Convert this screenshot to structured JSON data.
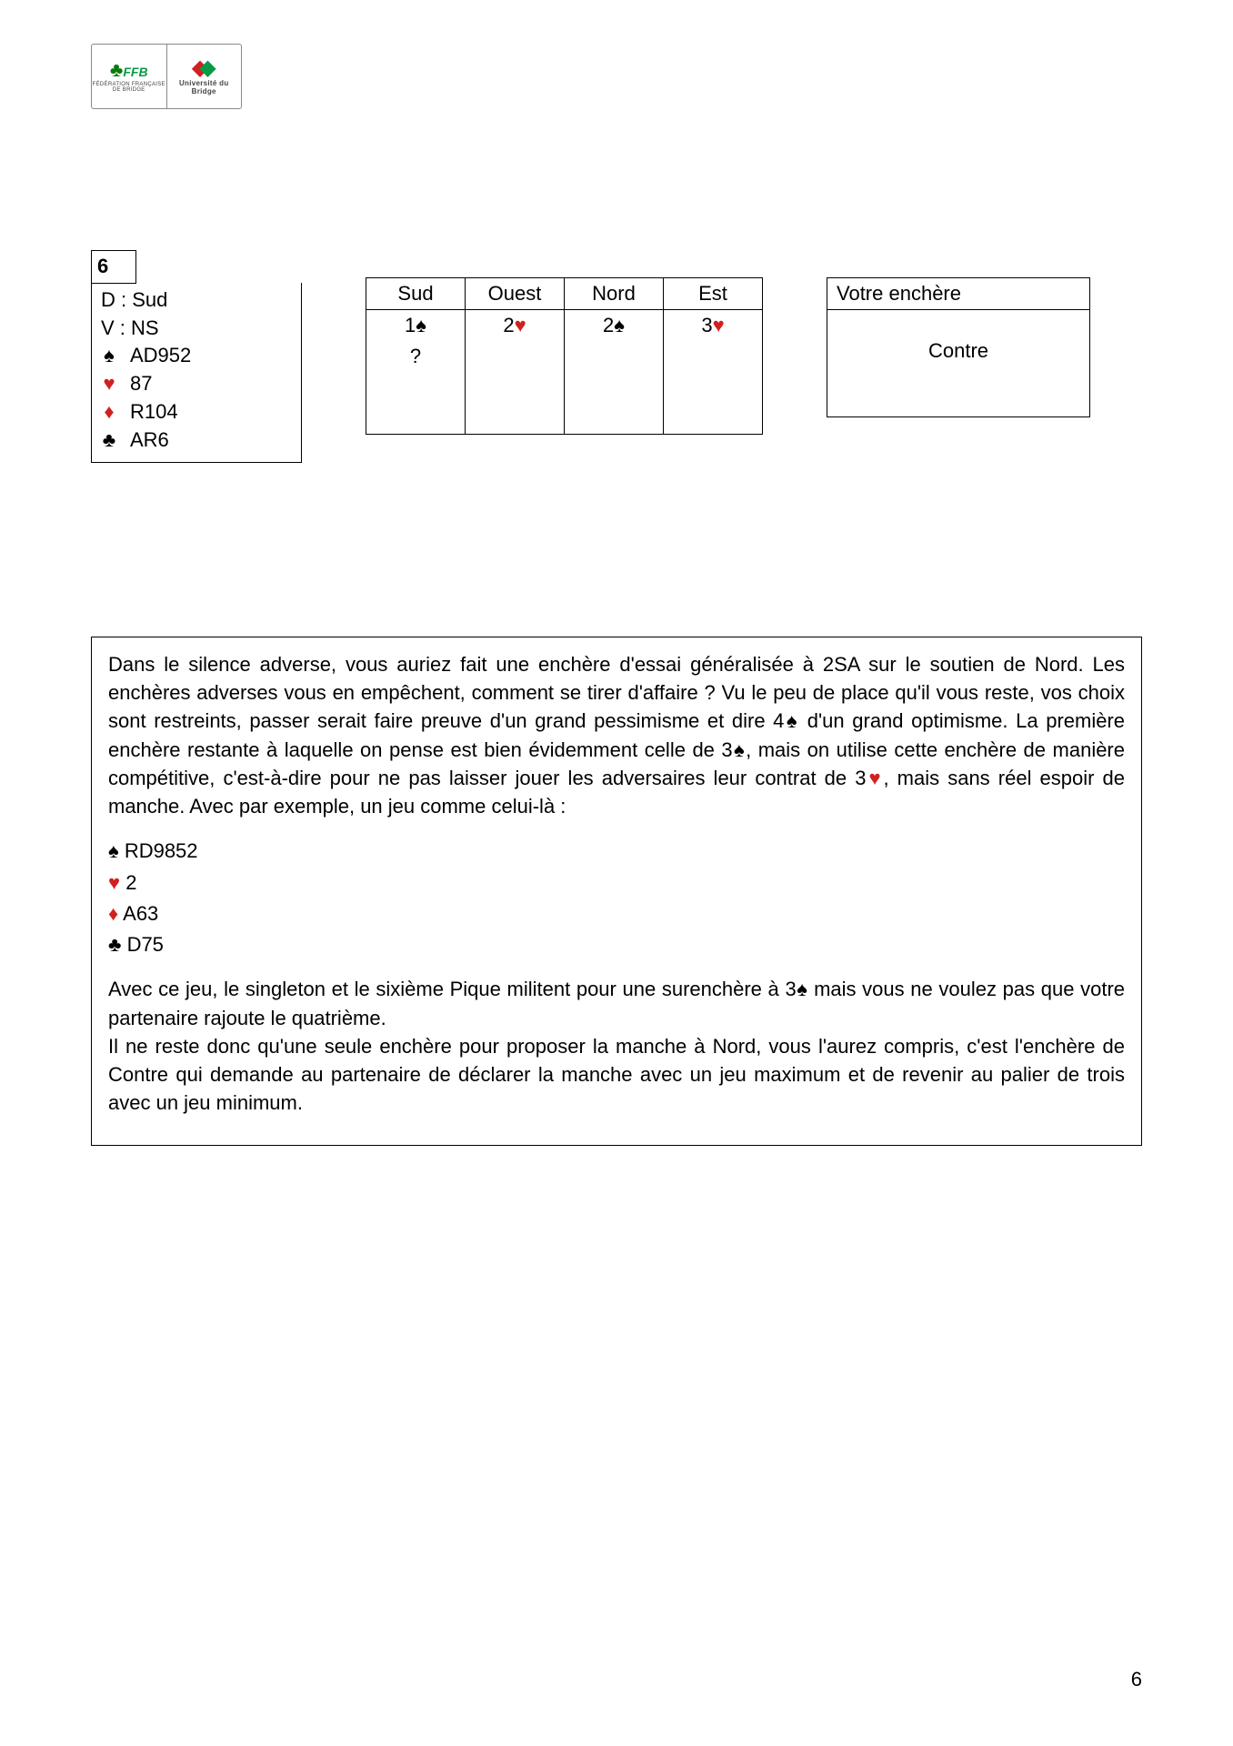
{
  "logo": {
    "ffb_label": "FFB",
    "ffb_sub": "FÉDÉRATION FRANÇAISE DE BRIDGE",
    "univ_label": "Université du Bridge"
  },
  "deal": {
    "number": "6",
    "dealer_line": "D : Sud",
    "vul_line": "V : NS",
    "hand": {
      "spades": "AD952",
      "hearts": "87",
      "diamonds": "R104",
      "clubs": "AR6"
    }
  },
  "bidding": {
    "headers": [
      "Sud",
      "Ouest",
      "Nord",
      "Est"
    ],
    "rows": [
      [
        {
          "text": "1",
          "suit": "spade",
          "color": "black"
        },
        {
          "text": "2",
          "suit": "heart",
          "color": "red"
        },
        {
          "text": "2",
          "suit": "spade",
          "color": "black"
        },
        {
          "text": "3",
          "suit": "heart",
          "color": "red"
        }
      ],
      [
        {
          "text": "?",
          "suit": "",
          "color": "black"
        },
        {
          "text": "",
          "suit": "",
          "color": ""
        },
        {
          "text": "",
          "suit": "",
          "color": ""
        },
        {
          "text": "",
          "suit": "",
          "color": ""
        }
      ],
      [
        {
          "text": "",
          "suit": "",
          "color": ""
        },
        {
          "text": "",
          "suit": "",
          "color": ""
        },
        {
          "text": "",
          "suit": "",
          "color": ""
        },
        {
          "text": "",
          "suit": "",
          "color": ""
        }
      ],
      [
        {
          "text": "",
          "suit": "",
          "color": ""
        },
        {
          "text": "",
          "suit": "",
          "color": ""
        },
        {
          "text": "",
          "suit": "",
          "color": ""
        },
        {
          "text": "",
          "suit": "",
          "color": ""
        }
      ]
    ]
  },
  "answer": {
    "title": "Votre enchère",
    "value": "Contre"
  },
  "explanation": {
    "p1_a": "Dans le silence adverse, vous auriez fait une enchère d'essai généralisée à 2SA sur le soutien de Nord. Les enchères adverses vous en empêchent, comment se tirer d'affaire ? Vu le peu de place qu'il vous reste, vos choix sont restreints, passer serait faire preuve d'un grand pessimisme et dire 4",
    "p1_b": " d'un grand optimisme. La première enchère restante à laquelle on pense est bien évidemment celle de 3",
    "p1_c": ", mais on utilise cette enchère de manière compétitive, c'est-à-dire pour ne pas laisser jouer les adversaires leur contrat de 3",
    "p1_d": ", mais sans réel espoir de manche. Avec par exemple, un jeu comme celui-là :",
    "ex_spades": "RD9852",
    "ex_hearts": "2",
    "ex_diamonds": "A63",
    "ex_clubs": "D75",
    "p2_a": "Avec ce jeu, le singleton et le sixième Pique militent pour une surenchère à 3",
    "p2_b": " mais vous ne voulez pas que votre partenaire rajoute le quatrième.",
    "p3": "Il ne reste donc qu'une seule enchère pour proposer la manche à Nord, vous l'aurez compris, c'est l'enchère de Contre qui demande au partenaire de déclarer la manche avec un jeu maximum et de revenir au palier de trois avec un jeu minimum."
  },
  "page_number": "6",
  "suits": {
    "spade": "♠",
    "heart": "♥",
    "diamond": "♦",
    "club": "♣"
  },
  "colors": {
    "red": "#d02020",
    "black": "#000000"
  }
}
